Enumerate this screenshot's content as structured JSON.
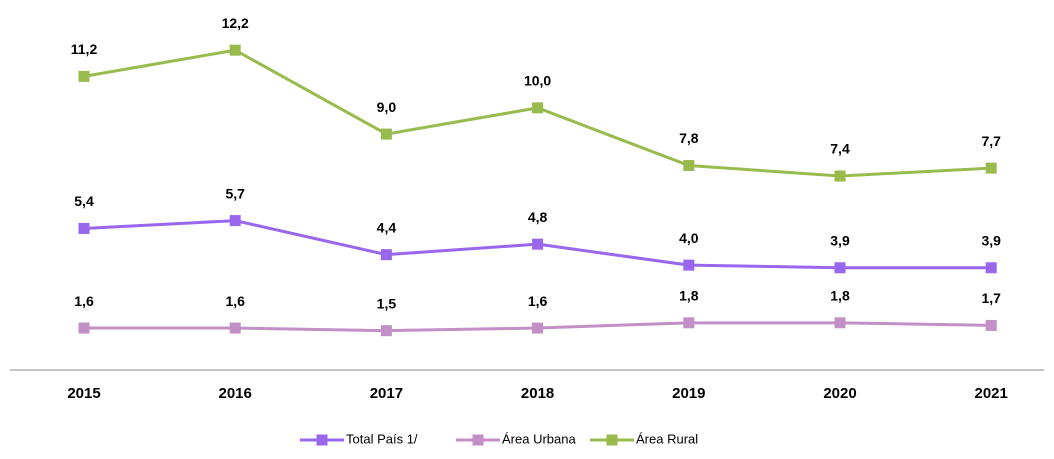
{
  "chart_data": {
    "type": "line",
    "categories": [
      "2015",
      "2016",
      "2017",
      "2018",
      "2019",
      "2020",
      "2021"
    ],
    "series": [
      {
        "name": "Total País 1/",
        "color": "#9966ee",
        "values": [
          5.4,
          5.7,
          4.4,
          4.8,
          4.0,
          3.9,
          3.9
        ],
        "value_labels": [
          "5,4",
          "5,7",
          "4,4",
          "4,8",
          "4,0",
          "3,9",
          "3,9"
        ]
      },
      {
        "name": "Área Urbana",
        "color": "#c28fc6",
        "values": [
          1.6,
          1.6,
          1.5,
          1.6,
          1.8,
          1.8,
          1.7
        ],
        "value_labels": [
          "1,6",
          "1,6",
          "1,5",
          "1,6",
          "1,8",
          "1,8",
          "1,7"
        ]
      },
      {
        "name": "Área Rural",
        "color": "#99bb4d",
        "values": [
          11.2,
          12.2,
          9.0,
          10.0,
          7.8,
          7.4,
          7.7
        ],
        "value_labels": [
          "11,2",
          "12,2",
          "9,0",
          "10,0",
          "7,8",
          "7,4",
          "7,7"
        ]
      }
    ],
    "ylim": [
      0,
      14
    ],
    "legend": "bottom"
  }
}
